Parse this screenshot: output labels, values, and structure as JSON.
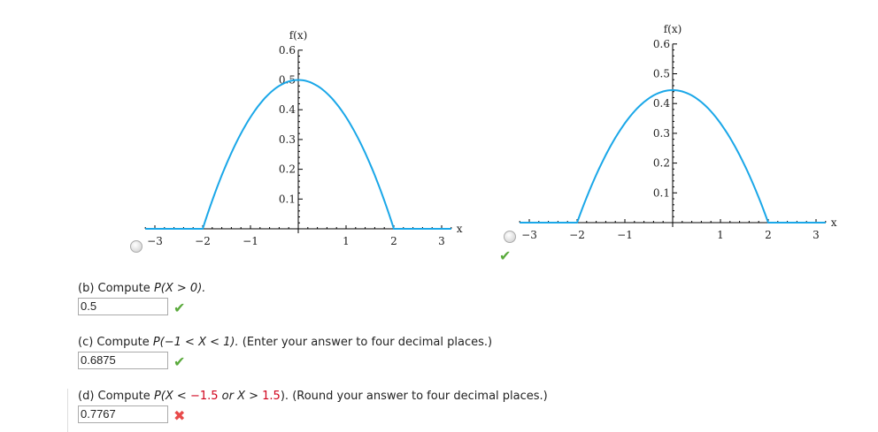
{
  "chart_data": [
    {
      "type": "line",
      "ylabel": "f(x)",
      "xlabel": "x",
      "xlim": [
        -3.2,
        3.2
      ],
      "ylim": [
        0,
        0.6
      ],
      "xticks": [
        "−3",
        "−2",
        "−1",
        "1",
        "2",
        "3"
      ],
      "xtick_values": [
        -3,
        -2,
        -1,
        1,
        2,
        3
      ],
      "yticks": [
        "0.1",
        "0.2",
        "0.3",
        "0.4",
        "0.5",
        "0.6"
      ],
      "ytick_values": [
        0.1,
        0.2,
        0.3,
        0.4,
        0.5,
        0.6
      ],
      "color": "#1aa7e8",
      "support": [
        -2,
        2
      ],
      "peak": 0.5,
      "function": "0.5 - x^2/8 on [-2,2], 0 elsewhere"
    },
    {
      "type": "line",
      "ylabel": "f(x)",
      "xlabel": "x",
      "xlim": [
        -3.2,
        3.2
      ],
      "ylim": [
        0,
        0.6
      ],
      "xticks": [
        "−3",
        "−2",
        "−1",
        "1",
        "2",
        "3"
      ],
      "xtick_values": [
        -3,
        -2,
        -1,
        1,
        2,
        3
      ],
      "yticks": [
        "0.1",
        "0.2",
        "0.3",
        "0.4",
        "0.5",
        "0.6"
      ],
      "ytick_values": [
        0.1,
        0.2,
        0.3,
        0.4,
        0.5,
        0.6
      ],
      "color": "#1aa7e8",
      "support": [
        -2,
        2
      ],
      "peak": 0.445,
      "function": "parabola on [-2,2], 0 elsewhere"
    }
  ],
  "options": [
    {
      "selected": false,
      "status": ""
    },
    {
      "selected": false,
      "status": "correct"
    }
  ],
  "questions": [
    {
      "prefix": "(b) Compute ",
      "expr": "P(X > 0).",
      "suffix": "",
      "answer": "0.5",
      "status": "correct"
    },
    {
      "prefix": "(c) Compute ",
      "expr": "P(−1 < X < 1).",
      "suffix": " (Enter your answer to four decimal places.)",
      "answer": "0.6875",
      "status": "correct"
    },
    {
      "prefix": "(d) Compute  ",
      "expr_a": "P(X < ",
      "expr_b": "−1.5",
      "expr_c": " or X > ",
      "expr_d": "1.5",
      "expr_e": ").",
      "suffix": "  (Round your answer to four decimal places.)",
      "answer": "0.7767",
      "status": "incorrect"
    }
  ],
  "icons": {
    "correct": "check-icon",
    "incorrect": "x-icon"
  }
}
